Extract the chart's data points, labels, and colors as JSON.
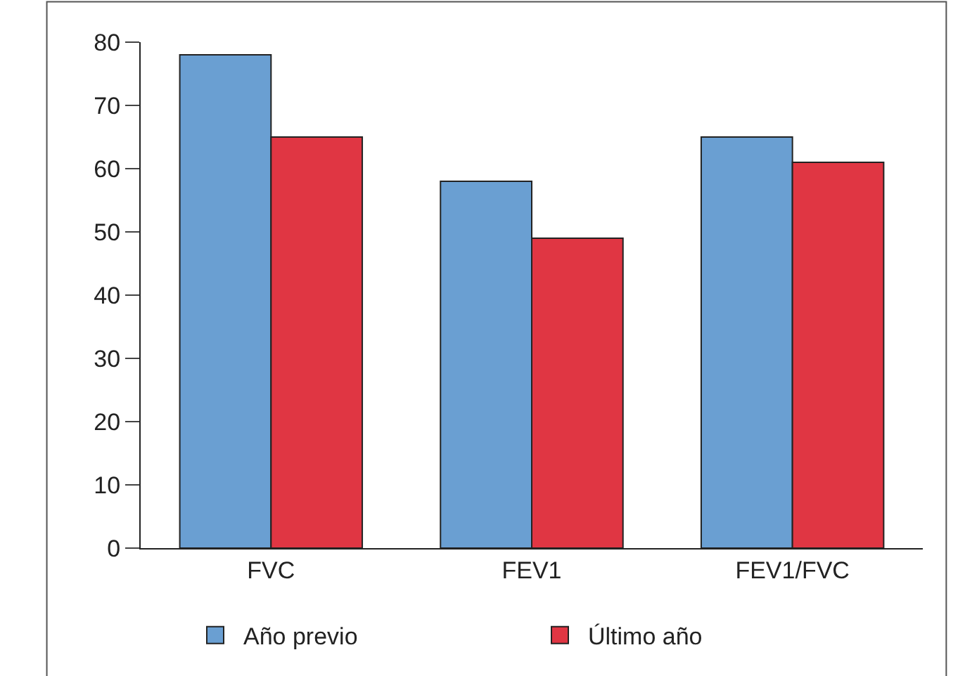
{
  "chart_data": {
    "type": "bar",
    "categories": [
      "FVC",
      "FEV1",
      "FEV1/FVC"
    ],
    "series": [
      {
        "name": "Año previo",
        "color": "#6a9fd2",
        "values": [
          78,
          58,
          65
        ]
      },
      {
        "name": "Último año",
        "color": "#e03643",
        "values": [
          65,
          49,
          61
        ]
      }
    ],
    "ylim": [
      0,
      80
    ],
    "yticks": [
      0,
      10,
      20,
      30,
      40,
      50,
      60,
      70,
      80
    ],
    "legend": "bottom"
  }
}
